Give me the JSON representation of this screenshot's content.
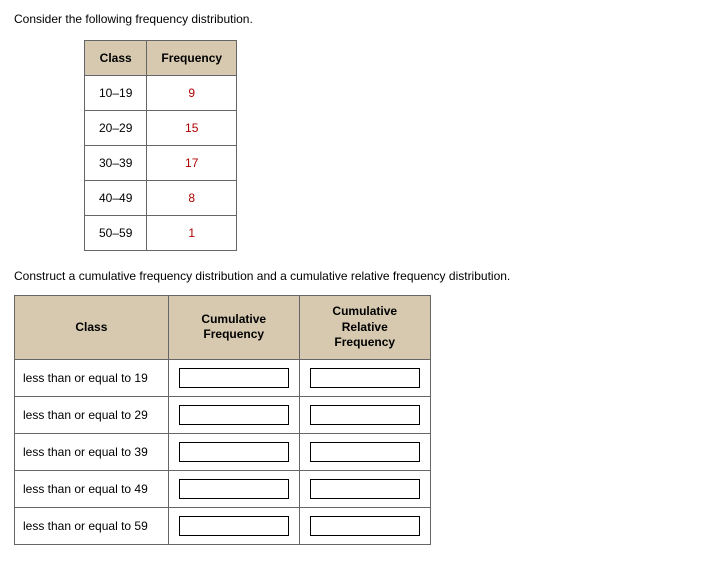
{
  "intro": "Consider the following frequency distribution.",
  "freq_table": {
    "headers": {
      "class": "Class",
      "freq": "Frequency"
    },
    "rows": [
      {
        "cls": "10–19",
        "freq": "9"
      },
      {
        "cls": "20–29",
        "freq": "15"
      },
      {
        "cls": "30–39",
        "freq": "17"
      },
      {
        "cls": "40–49",
        "freq": "8"
      },
      {
        "cls": "50–59",
        "freq": "1"
      }
    ]
  },
  "instruction": "Construct a cumulative frequency distribution and a cumulative relative frequency distribution.",
  "cum_table": {
    "headers": {
      "class": "Class",
      "cumfreq": "Cumulative\nFrequency",
      "cumrel": "Cumulative\nRelative\nFrequency"
    },
    "rows": [
      {
        "label": "less than or equal to 19",
        "v1": "",
        "v2": ""
      },
      {
        "label": "less than or equal to 29",
        "v1": "",
        "v2": ""
      },
      {
        "label": "less than or equal to 39",
        "v1": "",
        "v2": ""
      },
      {
        "label": "less than or equal to 49",
        "v1": "",
        "v2": ""
      },
      {
        "label": "less than or equal to 59",
        "v1": "",
        "v2": ""
      }
    ]
  },
  "colors": {
    "header_bg": "#d6c9af",
    "freq_value": "#b00000",
    "border": "#666666"
  }
}
